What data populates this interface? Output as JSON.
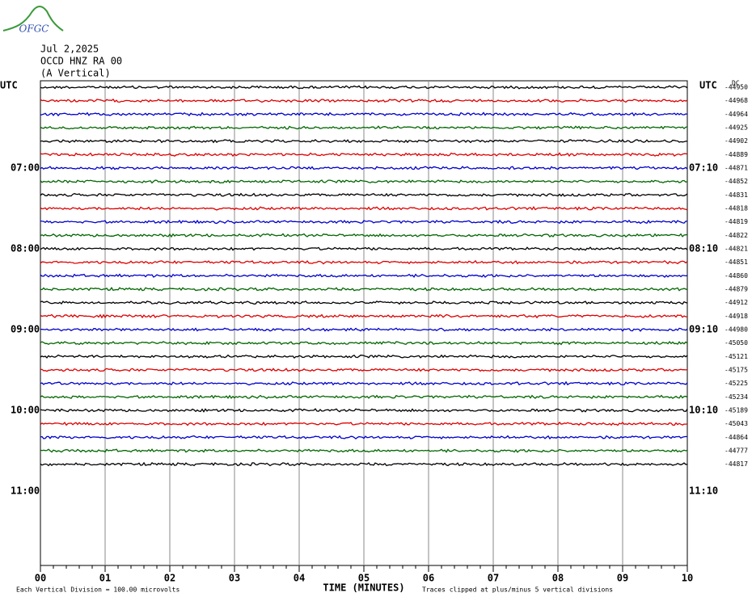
{
  "logo": {
    "text": "OFGC"
  },
  "header": {
    "date": "Jul 2,2025",
    "station": "OCCD HNZ RA 00",
    "component": "(A Vertical)",
    "dc_label": "DC"
  },
  "left_labels": [
    "UTC",
    "07:00",
    "08:00",
    "09:00",
    "10:00",
    "11:00"
  ],
  "right_labels": [
    "UTC",
    "07:10",
    "08:10",
    "09:10",
    "10:10",
    "11:10"
  ],
  "trace_colors": [
    "#000000",
    "#dd0000",
    "#0000cc",
    "#006600"
  ],
  "offsets": [
    -44950,
    -44968,
    -44964,
    -44925,
    -44902,
    -44889,
    -44871,
    -44852,
    -44831,
    -44818,
    -44819,
    -44822,
    -44821,
    -44851,
    -44860,
    -44879,
    -44912,
    -44918,
    -44980,
    -45050,
    -45121,
    -45175,
    -45225,
    -45234,
    -45189,
    -45043,
    -44864,
    -44777,
    -44817
  ],
  "x_axis": {
    "ticks": [
      "00",
      "01",
      "02",
      "03",
      "04",
      "05",
      "06",
      "07",
      "08",
      "09",
      "10"
    ],
    "title": "TIME (MINUTES)"
  },
  "footer": {
    "scale": "Each Vertical Division =  100.00 microvolts",
    "clip": "Traces clipped at plus/minus 5 vertical divisions"
  }
}
